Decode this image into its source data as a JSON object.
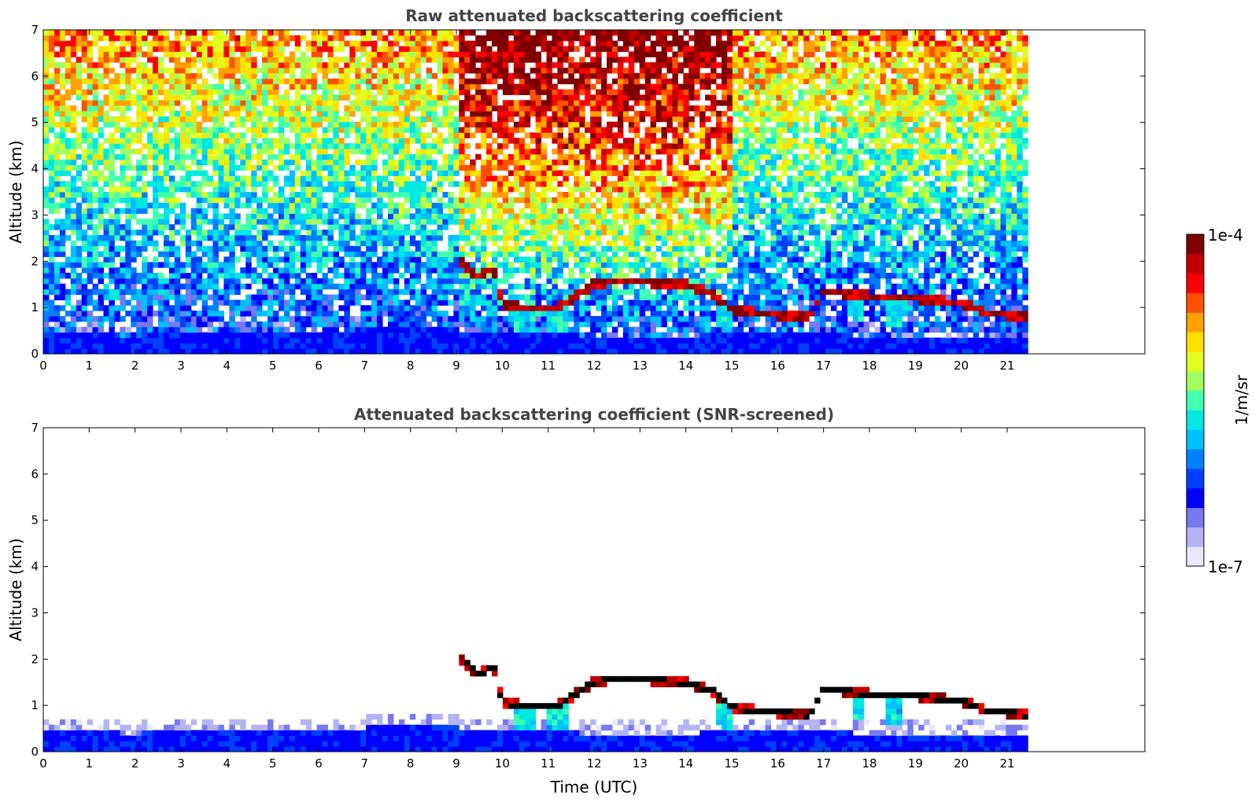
{
  "colors": {
    "colormap": [
      "#e8e8fa",
      "#b4b4f4",
      "#7878f0",
      "#0000ff",
      "#0040ff",
      "#0080ff",
      "#00c0ff",
      "#00e8e0",
      "#40ffb0",
      "#a0ff60",
      "#e0ff20",
      "#ffe000",
      "#ffa000",
      "#ff5000",
      "#ff0000",
      "#c00000",
      "#800000"
    ],
    "cloud_edge_dark": "#000000",
    "title_color": "#444444"
  },
  "chart_data": [
    {
      "type": "heatmap",
      "title": "Raw attenuated backscattering coefficient",
      "xlabel": "",
      "ylabel": "Altitude (km)",
      "xlim": [
        0,
        24
      ],
      "ylim": [
        0,
        7
      ],
      "xticks": [
        "0",
        "1",
        "2",
        "3",
        "4",
        "5",
        "6",
        "7",
        "8",
        "9",
        "10",
        "11",
        "12",
        "13",
        "14",
        "15",
        "16",
        "17",
        "18",
        "19",
        "20",
        "21"
      ],
      "yticks": [
        "0",
        "1",
        "2",
        "3",
        "4",
        "5",
        "6",
        "7"
      ],
      "data_end_hour": 21.45,
      "cloud_base_km": [
        {
          "t": 9.1,
          "h": 2.0
        },
        {
          "t": 9.5,
          "h": 1.65
        },
        {
          "t": 9.8,
          "h": 1.9
        },
        {
          "t": 10.0,
          "h": 1.05
        },
        {
          "t": 10.6,
          "h": 1.0
        },
        {
          "t": 11.2,
          "h": 1.0
        },
        {
          "t": 12.0,
          "h": 1.5
        },
        {
          "t": 12.6,
          "h": 1.6
        },
        {
          "t": 13.2,
          "h": 1.55
        },
        {
          "t": 14.0,
          "h": 1.5
        },
        {
          "t": 14.6,
          "h": 1.3
        },
        {
          "t": 15.0,
          "h": 0.95
        },
        {
          "t": 16.0,
          "h": 0.85
        },
        {
          "t": 16.7,
          "h": 0.8
        },
        {
          "t": 17.0,
          "h": 1.35
        },
        {
          "t": 18.0,
          "h": 1.25
        },
        {
          "t": 19.0,
          "h": 1.2
        },
        {
          "t": 20.0,
          "h": 1.1
        },
        {
          "t": 20.5,
          "h": 0.9
        },
        {
          "t": 21.45,
          "h": 0.8
        }
      ],
      "boundary_layer_top_km": [
        {
          "t": 0,
          "h": 0.45
        },
        {
          "t": 2,
          "h": 0.4
        },
        {
          "t": 4,
          "h": 0.5
        },
        {
          "t": 6,
          "h": 0.45
        },
        {
          "t": 8,
          "h": 0.6
        },
        {
          "t": 10,
          "h": 0.45
        },
        {
          "t": 12,
          "h": 0.4
        },
        {
          "t": 14,
          "h": 0.4
        },
        {
          "t": 16,
          "h": 0.45
        },
        {
          "t": 18,
          "h": 0.4
        },
        {
          "t": 21.45,
          "h": 0.4
        }
      ]
    },
    {
      "type": "heatmap",
      "title": "Attenuated backscattering coefficient (SNR-screened)",
      "xlabel": "Time (UTC)",
      "ylabel": "Altitude (km)",
      "xlim": [
        0,
        24
      ],
      "ylim": [
        0,
        7
      ],
      "xticks": [
        "0",
        "1",
        "2",
        "3",
        "4",
        "5",
        "6",
        "7",
        "8",
        "9",
        "10",
        "11",
        "12",
        "13",
        "14",
        "15",
        "16",
        "17",
        "18",
        "19",
        "20",
        "21"
      ],
      "yticks": [
        "0",
        "1",
        "2",
        "3",
        "4",
        "5",
        "6",
        "7"
      ],
      "data_end_hour": 21.45
    }
  ],
  "colorbar": {
    "max_label": "1e-4",
    "min_label": "1e-7",
    "unit_label": "1/m/sr",
    "scale": "log",
    "range": [
      1e-07,
      0.0001
    ]
  }
}
